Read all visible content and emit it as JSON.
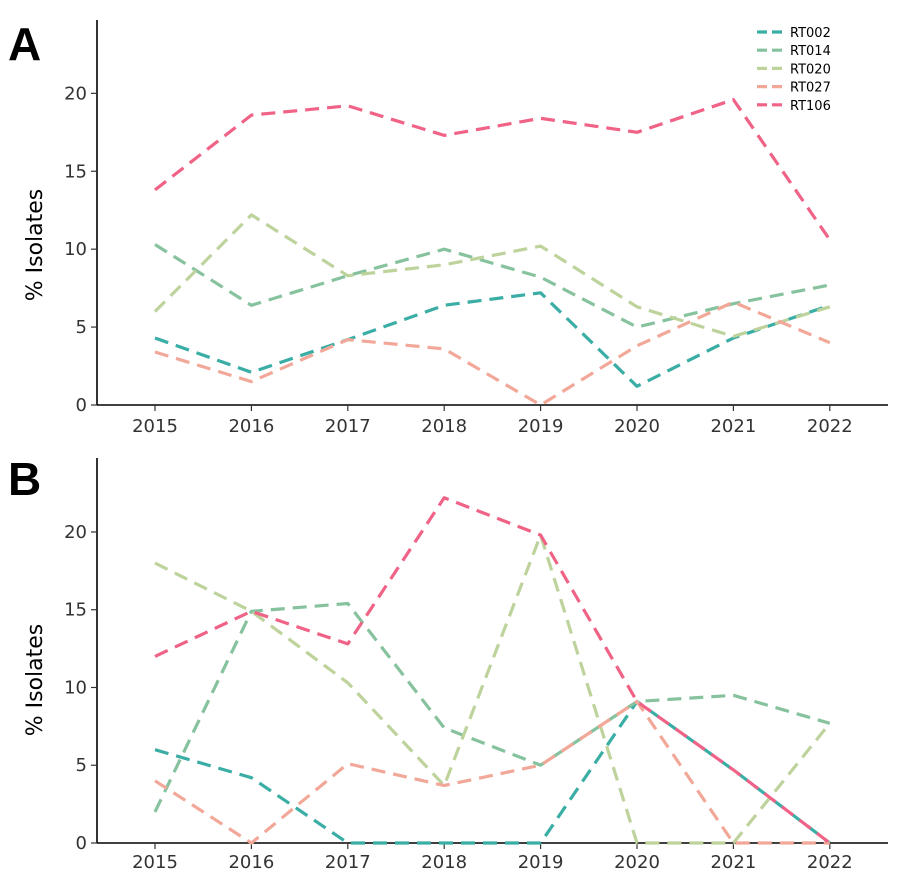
{
  "chart_data": [
    {
      "type": "line",
      "panel": "A",
      "title": "",
      "xlabel": "",
      "ylabel": "% Isolates",
      "categories": [
        "2015",
        "2016",
        "2017",
        "2018",
        "2019",
        "2020",
        "2021",
        "2022"
      ],
      "ylim": [
        0,
        24
      ],
      "yticks": [
        0,
        5,
        10,
        15,
        20
      ],
      "legend_position": "top-right",
      "series": [
        {
          "name": "RT002",
          "color": "#3aada5",
          "values": [
            4.3,
            2.1,
            4.2,
            6.4,
            7.2,
            1.2,
            4.3,
            6.4
          ]
        },
        {
          "name": "RT014",
          "color": "#87c29e",
          "values": [
            10.3,
            6.4,
            8.3,
            10.0,
            8.2,
            5.0,
            6.5,
            7.7
          ]
        },
        {
          "name": "RT020",
          "color": "#bed39c",
          "values": [
            6.0,
            12.2,
            8.3,
            9.0,
            10.2,
            6.3,
            4.4,
            6.3
          ]
        },
        {
          "name": "RT027",
          "color": "#f2a898",
          "values": [
            3.4,
            1.5,
            4.2,
            3.6,
            0.0,
            3.8,
            6.6,
            4.0
          ]
        },
        {
          "name": "RT106",
          "color": "#f06286",
          "values": [
            13.8,
            18.6,
            19.2,
            17.3,
            18.4,
            17.5,
            19.6,
            10.6
          ]
        }
      ]
    },
    {
      "type": "line",
      "panel": "B",
      "title": "",
      "xlabel": "",
      "ylabel": "% Isolates",
      "categories": [
        "2015",
        "2016",
        "2017",
        "2018",
        "2019",
        "2020",
        "2021",
        "2022"
      ],
      "ylim": [
        0,
        24.5
      ],
      "yticks": [
        0,
        5,
        10,
        15,
        20
      ],
      "series": [
        {
          "name": "RT002",
          "color": "#3aada5",
          "values": [
            6.0,
            4.2,
            0.0,
            0.0,
            0.0,
            9.1,
            4.7,
            0.0
          ]
        },
        {
          "name": "RT014",
          "color": "#87c29e",
          "values": [
            2.0,
            14.9,
            15.4,
            7.4,
            5.0,
            9.1,
            9.5,
            7.7
          ]
        },
        {
          "name": "RT020",
          "color": "#bed39c",
          "values": [
            18.0,
            14.9,
            10.3,
            3.7,
            19.8,
            0.0,
            0.0,
            7.7
          ]
        },
        {
          "name": "RT027",
          "color": "#f2a898",
          "values": [
            4.0,
            0.0,
            5.1,
            3.7,
            5.0,
            9.1,
            0.0,
            0.0
          ]
        },
        {
          "name": "RT106",
          "color": "#f06286",
          "values": [
            12.0,
            14.9,
            12.8,
            22.2,
            19.8,
            9.1,
            4.7,
            0.0
          ]
        }
      ]
    }
  ]
}
